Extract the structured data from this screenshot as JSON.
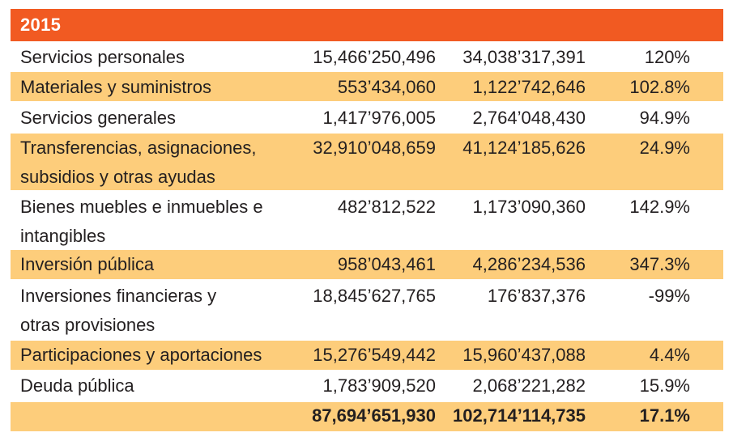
{
  "table": {
    "year": "2015",
    "colors": {
      "header": "#f15a22",
      "alt_row": "#fdcd7b",
      "text": "#231f20"
    },
    "rows": [
      {
        "concept": "Servicios personales",
        "value_a": "15,466’250,496",
        "value_b": "34,038’317,391",
        "change": "120%"
      },
      {
        "concept": "Materiales y suministros",
        "value_a": "553’434,060",
        "value_b": "1,122’742,646",
        "change": "102.8%"
      },
      {
        "concept": "Servicios generales",
        "value_a": "1,417’976,005",
        "value_b": "2,764’048,430",
        "change": "94.9%"
      },
      {
        "concept": "Transferencias, asignaciones, subsidios y otras ayudas",
        "value_a": "32,910’048,659",
        "value_b": "41,124’185,626",
        "change": "24.9%"
      },
      {
        "concept": "Bienes muebles e inmuebles e intangibles",
        "value_a": "482’812,522",
        "value_b": "1,173’090,360",
        "change": "142.9%"
      },
      {
        "concept": "Inversión pública",
        "value_a": "958’043,461",
        "value_b": "4,286’234,536",
        "change": "347.3%"
      },
      {
        "concept": "Inversiones financieras y otras provisiones",
        "value_a": "18,845’627,765",
        "value_b": "176’837,376",
        "change": "-99%"
      },
      {
        "concept": "Participaciones y aportaciones",
        "value_a": "15,276’549,442",
        "value_b": "15,960’437,088",
        "change": "4.4%"
      },
      {
        "concept": "Deuda pública",
        "value_a": "1,783’909,520",
        "value_b": "2,068’221,282",
        "change": "15.9%"
      }
    ],
    "total": {
      "concept": "",
      "value_a": "87,694’651,930",
      "value_b": "102,714’114,735",
      "change": "17.1%"
    }
  }
}
